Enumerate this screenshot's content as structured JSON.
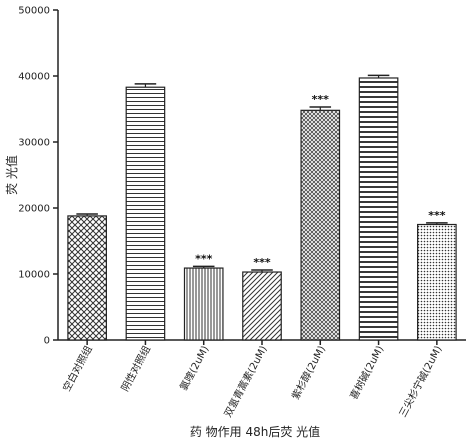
{
  "chart_data": {
    "type": "bar",
    "categories": [
      "空白对照组",
      "阴性对照组",
      "氯喹(2uM)",
      "双氢青蒿素(2uM)",
      "紫杉醇(2uM)",
      "喜树碱(2uM)",
      "三尖杉宁碱(2uM)"
    ],
    "values": [
      18800,
      38300,
      10900,
      10300,
      34800,
      39700,
      17500
    ],
    "errors": [
      300,
      500,
      250,
      300,
      500,
      400,
      250
    ],
    "significance": [
      "",
      "",
      "***",
      "***",
      "***",
      "",
      "***"
    ],
    "patterns": [
      "crosshatch-diag",
      "horizontal-lines",
      "vertical-lines",
      "diagonal-lines",
      "diamond-hatch",
      "horizontal-lines-thick",
      "dots"
    ],
    "ylabel": "荧 光值",
    "xlabel": "药  物作用 48h后荧 光值",
    "ylim": [
      0,
      50000
    ],
    "yticks": [
      0,
      10000,
      20000,
      30000,
      40000,
      50000
    ],
    "grid": false
  }
}
